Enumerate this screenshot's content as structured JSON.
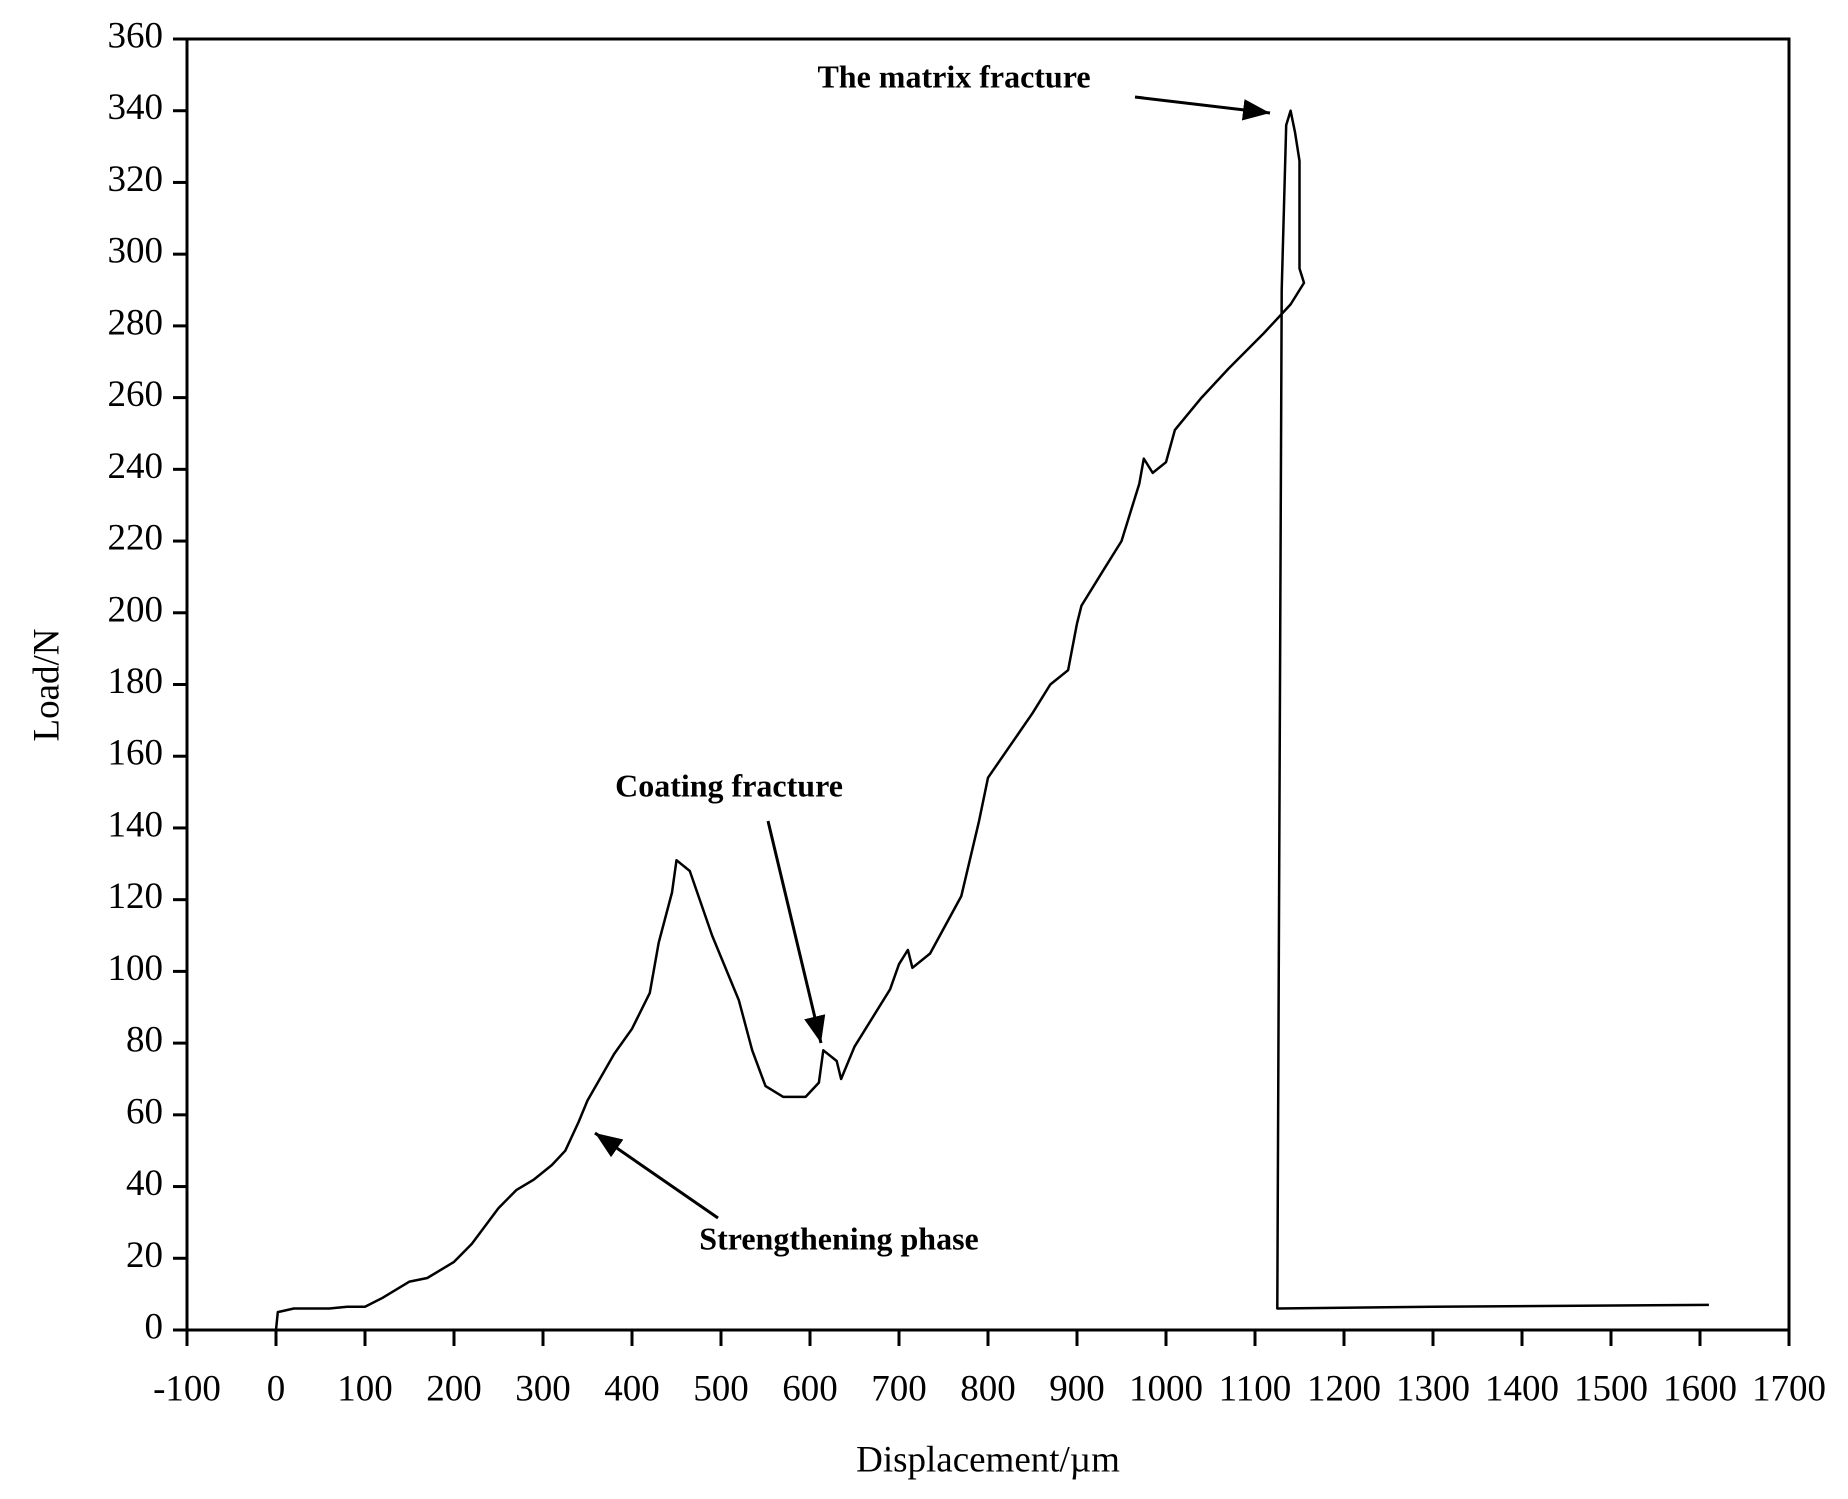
{
  "chart_data": {
    "type": "line",
    "x_label": "Displacement/µm",
    "y_label": "Load/N",
    "annotations": [
      "The matrix fracture",
      "Coating fracture",
      "Strengthening phase"
    ],
    "color": "#000000",
    "x": [
      0,
      2,
      20,
      60,
      80,
      100,
      120,
      150,
      170,
      200,
      220,
      250,
      270,
      290,
      310,
      325,
      340,
      350,
      380,
      400,
      420,
      430,
      445,
      450,
      465,
      490,
      520,
      535,
      550,
      570,
      595,
      610,
      615,
      630,
      635,
      650,
      690,
      700,
      710,
      715,
      735,
      770,
      790,
      800,
      850,
      870,
      890,
      900,
      905,
      930,
      950,
      970,
      975,
      985,
      1000,
      1010,
      1040,
      1070,
      1110,
      1140,
      1155,
      1150,
      1150,
      1145,
      1140,
      1135,
      1130,
      1125,
      1300,
      1610
    ],
    "values": [
      0,
      5,
      6,
      6,
      6.5,
      6.5,
      9,
      13.5,
      14.5,
      19,
      24,
      34,
      39,
      42,
      46,
      50,
      58,
      64,
      77,
      84,
      94,
      108,
      122,
      131,
      128,
      110,
      92,
      78,
      68,
      65,
      65,
      69,
      78,
      75,
      70,
      79,
      95,
      102,
      106,
      101,
      105,
      121,
      142,
      154,
      172,
      180,
      184,
      197,
      202,
      212,
      220,
      236,
      243,
      239,
      242,
      251,
      260,
      268,
      278,
      286,
      292,
      296,
      326,
      334,
      340,
      336,
      290,
      6,
      6.5,
      7
    ],
    "xlim": [
      -100,
      1700
    ],
    "xticks": [
      -100,
      0,
      100,
      200,
      300,
      400,
      500,
      600,
      700,
      800,
      900,
      1000,
      1100,
      1200,
      1300,
      1400,
      1500,
      1600,
      1700
    ],
    "ylim": [
      0,
      360
    ],
    "yticks": [
      0,
      20,
      40,
      60,
      80,
      100,
      120,
      140,
      160,
      180,
      200,
      220,
      240,
      260,
      280,
      300,
      320,
      340,
      360
    ],
    "grid": false
  }
}
